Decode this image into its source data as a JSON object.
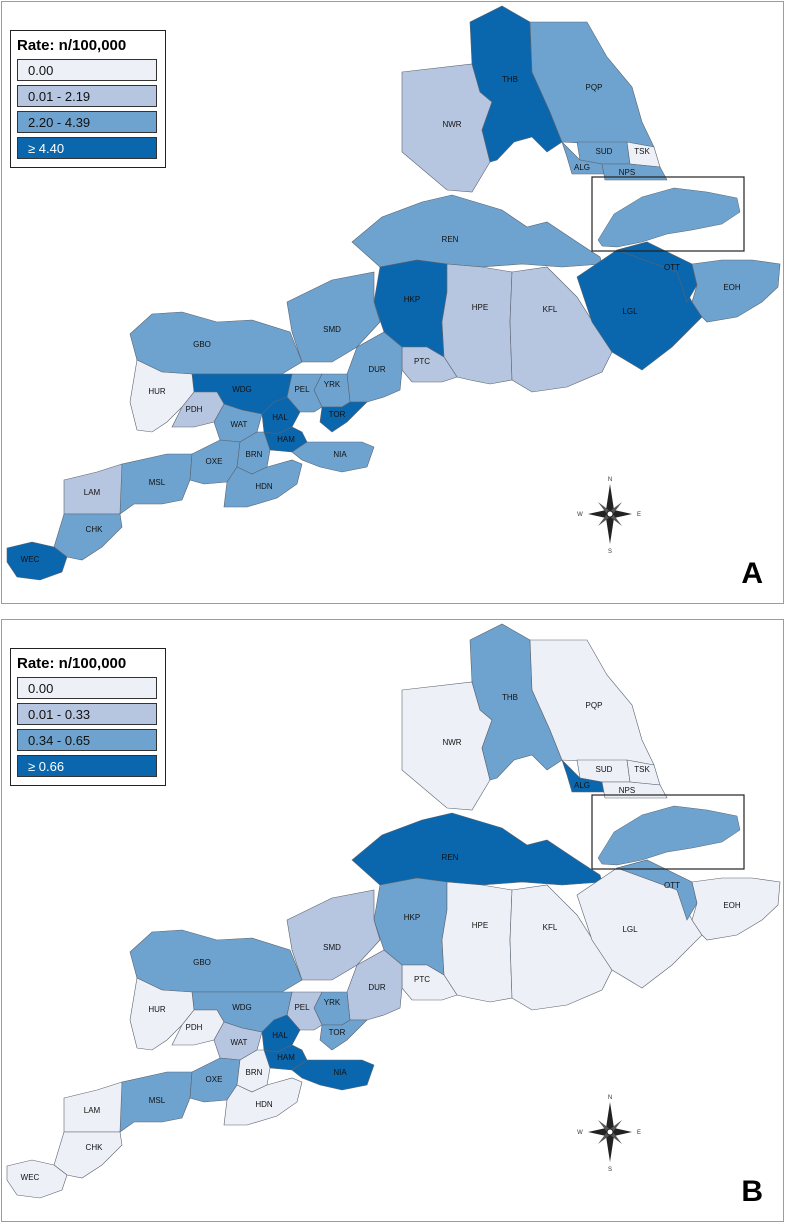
{
  "panels": [
    {
      "id": "A",
      "legend": {
        "title": "Rate: n/100,000",
        "classes": [
          {
            "label": "0.00",
            "color": "#eef0f7"
          },
          {
            "label": "0.01 - 2.19",
            "color": "#b7c6e0"
          },
          {
            "label": "2.20 - 4.39",
            "color": "#6ea3d0"
          },
          {
            "label": "≥ 4.40",
            "color": "#0b67ad"
          }
        ]
      },
      "letter": "A",
      "regions": {
        "NWR": 1,
        "THB": 3,
        "PQP": 2,
        "SUD": 2,
        "TSK": 0,
        "ALG": 2,
        "NPS": 2,
        "REN": 2,
        "HKP": 3,
        "HPE": 1,
        "KFL": 1,
        "LGL": 3,
        "OTT": 3,
        "EOH": 2,
        "SMD": 2,
        "PTC": 1,
        "GBO": 2,
        "DUR": 2,
        "YRK": 2,
        "PEL": 2,
        "TOR": 3,
        "WDG": 3,
        "HUR": 0,
        "PDH": 1,
        "WAT": 2,
        "HAL": 3,
        "HAM": 3,
        "NIA": 2,
        "LAM": 1,
        "MSL": 2,
        "OXE": 2,
        "BRN": 2,
        "HDN": 2,
        "CHK": 2,
        "WEC": 3
      }
    },
    {
      "id": "B",
      "legend": {
        "title": "Rate: n/100,000",
        "classes": [
          {
            "label": "0.00",
            "color": "#eef0f7"
          },
          {
            "label": "0.01 - 0.33",
            "color": "#b7c6e0"
          },
          {
            "label": "0.34 - 0.65",
            "color": "#6ea3d0"
          },
          {
            "label": "≥ 0.66",
            "color": "#0b67ad"
          }
        ]
      },
      "letter": "B",
      "regions": {
        "NWR": 0,
        "THB": 2,
        "PQP": 0,
        "SUD": 0,
        "TSK": 0,
        "ALG": 3,
        "NPS": 0,
        "REN": 3,
        "HKP": 2,
        "HPE": 0,
        "KFL": 0,
        "LGL": 0,
        "OTT": 2,
        "EOH": 0,
        "SMD": 1,
        "PTC": 0,
        "GBO": 2,
        "DUR": 1,
        "YRK": 2,
        "PEL": 1,
        "TOR": 2,
        "WDG": 2,
        "HUR": 0,
        "PDH": 0,
        "WAT": 1,
        "HAL": 3,
        "HAM": 3,
        "NIA": 3,
        "LAM": 0,
        "MSL": 2,
        "OXE": 2,
        "BRN": 0,
        "HDN": 0,
        "CHK": 0,
        "WEC": 0
      }
    }
  ],
  "compass": {
    "n": "N",
    "s": "S",
    "e": "E",
    "w": "W"
  }
}
